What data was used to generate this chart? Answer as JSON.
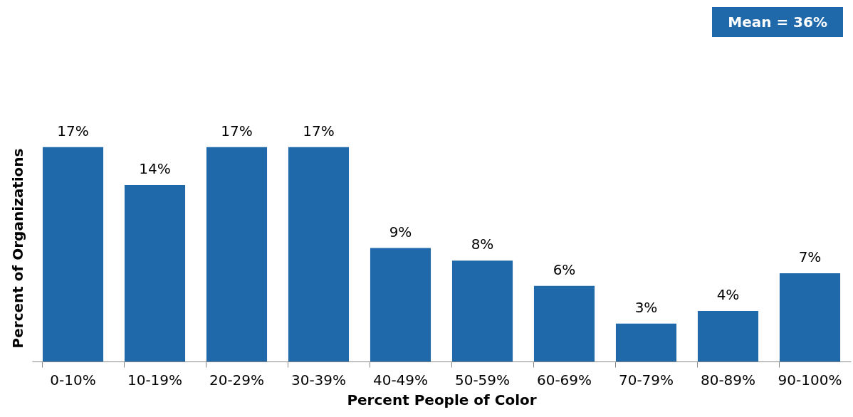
{
  "chart_data": {
    "type": "bar",
    "xlabel": "Percent People of Color",
    "ylabel": "Percent of Organizations",
    "categories": [
      "0-10%",
      "10-19%",
      "20-29%",
      "30-39%",
      "40-49%",
      "50-59%",
      "60-69%",
      "70-79%",
      "80-89%",
      "90-100%"
    ],
    "values": [
      17,
      14,
      17,
      17,
      9,
      8,
      6,
      3,
      4,
      7
    ],
    "value_labels": [
      "17%",
      "14%",
      "17%",
      "17%",
      "9%",
      "8%",
      "6%",
      "3%",
      "4%",
      "7%"
    ],
    "color": "#1f69ab",
    "annotations": [
      "Mean = 36%"
    ]
  }
}
